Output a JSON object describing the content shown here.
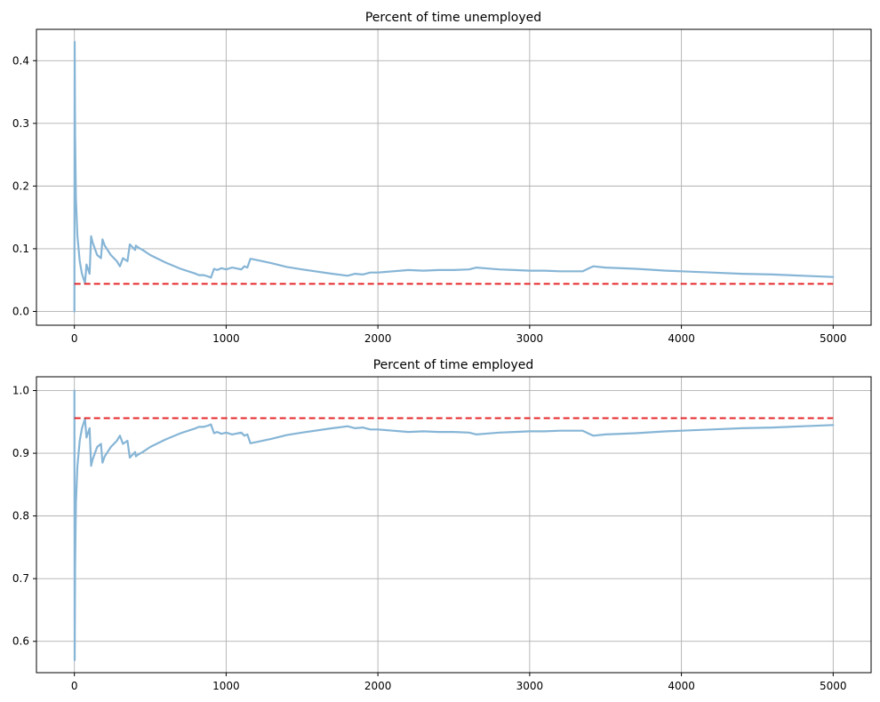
{
  "chart_data": [
    {
      "type": "line",
      "title": "Percent of time unemployed",
      "xlabel": "",
      "ylabel": "",
      "xlim": [
        -250,
        5250
      ],
      "ylim": [
        -0.022,
        0.45
      ],
      "xticks": [
        0,
        1000,
        2000,
        3000,
        4000,
        5000
      ],
      "yticks": [
        0.0,
        0.1,
        0.2,
        0.3,
        0.4
      ],
      "grid": true,
      "series": [
        {
          "style": "solid",
          "color": "#86b5d6",
          "x": [
            0,
            2,
            5,
            10,
            20,
            35,
            50,
            70,
            80,
            100,
            110,
            120,
            150,
            175,
            185,
            200,
            240,
            280,
            300,
            320,
            350,
            365,
            400,
            405,
            420,
            450,
            500,
            600,
            700,
            800,
            820,
            850,
            880,
            900,
            920,
            940,
            970,
            1000,
            1040,
            1080,
            1100,
            1120,
            1140,
            1160,
            1200,
            1300,
            1400,
            1500,
            1700,
            1800,
            1850,
            1900,
            1950,
            2000,
            2050,
            2100,
            2150,
            2200,
            2300,
            2400,
            2500,
            2600,
            2650,
            2700,
            2800,
            2900,
            3000,
            3100,
            3200,
            3300,
            3350,
            3400,
            3420,
            3500,
            3700,
            3900,
            4000,
            4200,
            4400,
            4600,
            4800,
            5000
          ],
          "y": [
            0.0,
            0.43,
            0.28,
            0.18,
            0.12,
            0.08,
            0.06,
            0.045,
            0.075,
            0.06,
            0.12,
            0.11,
            0.09,
            0.085,
            0.115,
            0.105,
            0.09,
            0.08,
            0.072,
            0.085,
            0.08,
            0.107,
            0.098,
            0.105,
            0.102,
            0.098,
            0.09,
            0.078,
            0.068,
            0.06,
            0.058,
            0.058,
            0.056,
            0.054,
            0.068,
            0.066,
            0.069,
            0.067,
            0.07,
            0.068,
            0.067,
            0.072,
            0.07,
            0.084,
            0.082,
            0.077,
            0.071,
            0.067,
            0.06,
            0.057,
            0.06,
            0.059,
            0.062,
            0.062,
            0.063,
            0.064,
            0.065,
            0.066,
            0.065,
            0.066,
            0.066,
            0.067,
            0.07,
            0.069,
            0.067,
            0.066,
            0.065,
            0.065,
            0.064,
            0.064,
            0.064,
            0.07,
            0.072,
            0.07,
            0.068,
            0.065,
            0.064,
            0.062,
            0.06,
            0.059,
            0.057,
            0.055
          ]
        },
        {
          "style": "dashed",
          "color": "#e31a1c",
          "x": [
            0,
            5000
          ],
          "y": [
            0.044,
            0.044
          ]
        }
      ],
      "ytick_decimals": 1
    },
    {
      "type": "line",
      "title": "Percent of time employed",
      "xlabel": "",
      "ylabel": "",
      "xlim": [
        -250,
        5250
      ],
      "ylim": [
        0.55,
        1.022
      ],
      "xticks": [
        0,
        1000,
        2000,
        3000,
        4000,
        5000
      ],
      "yticks": [
        0.6,
        0.7,
        0.8,
        0.9,
        1.0
      ],
      "grid": true,
      "series": [
        {
          "style": "solid",
          "color": "#86b5d6",
          "x": [
            0,
            2,
            5,
            10,
            20,
            35,
            50,
            70,
            80,
            100,
            110,
            120,
            150,
            175,
            185,
            200,
            240,
            280,
            300,
            320,
            350,
            365,
            400,
            405,
            420,
            450,
            500,
            600,
            700,
            800,
            820,
            850,
            880,
            900,
            920,
            940,
            970,
            1000,
            1040,
            1080,
            1100,
            1120,
            1140,
            1160,
            1200,
            1300,
            1400,
            1500,
            1700,
            1800,
            1850,
            1900,
            1950,
            2000,
            2050,
            2100,
            2150,
            2200,
            2300,
            2400,
            2500,
            2600,
            2650,
            2700,
            2800,
            2900,
            3000,
            3100,
            3200,
            3300,
            3350,
            3400,
            3420,
            3500,
            3700,
            3900,
            4000,
            4200,
            4400,
            4600,
            4800,
            5000
          ],
          "y": [
            1.0,
            0.57,
            0.72,
            0.82,
            0.88,
            0.92,
            0.94,
            0.955,
            0.925,
            0.94,
            0.88,
            0.89,
            0.91,
            0.915,
            0.885,
            0.895,
            0.91,
            0.92,
            0.928,
            0.915,
            0.92,
            0.893,
            0.902,
            0.895,
            0.898,
            0.902,
            0.91,
            0.922,
            0.932,
            0.94,
            0.942,
            0.942,
            0.944,
            0.946,
            0.932,
            0.934,
            0.931,
            0.933,
            0.93,
            0.932,
            0.933,
            0.928,
            0.93,
            0.916,
            0.918,
            0.923,
            0.929,
            0.933,
            0.94,
            0.943,
            0.94,
            0.941,
            0.938,
            0.938,
            0.937,
            0.936,
            0.935,
            0.934,
            0.935,
            0.934,
            0.934,
            0.933,
            0.93,
            0.931,
            0.933,
            0.934,
            0.935,
            0.935,
            0.936,
            0.936,
            0.936,
            0.93,
            0.928,
            0.93,
            0.932,
            0.935,
            0.936,
            0.938,
            0.94,
            0.941,
            0.943,
            0.945
          ]
        },
        {
          "style": "dashed",
          "color": "#e31a1c",
          "x": [
            0,
            5000
          ],
          "y": [
            0.956,
            0.956
          ]
        }
      ],
      "ytick_decimals": 1
    }
  ]
}
